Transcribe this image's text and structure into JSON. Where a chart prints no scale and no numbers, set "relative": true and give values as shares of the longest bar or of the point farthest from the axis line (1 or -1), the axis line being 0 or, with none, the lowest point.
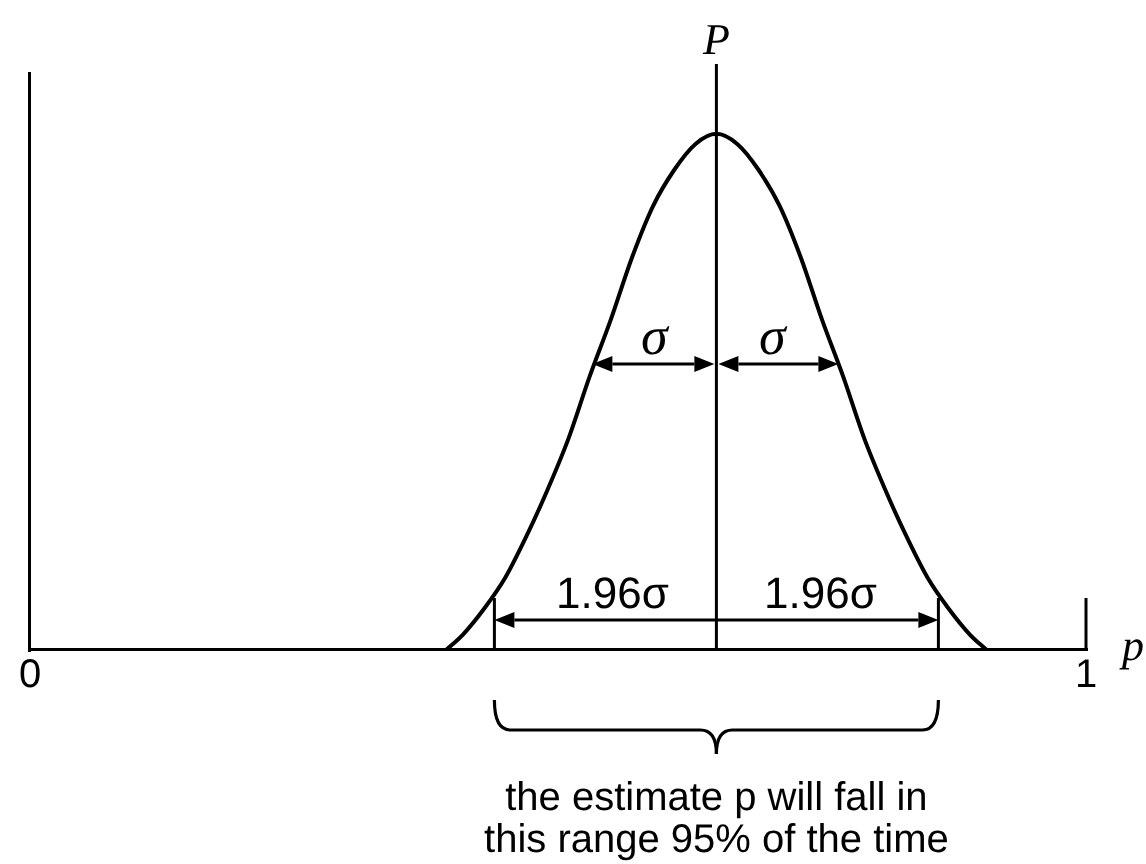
{
  "chart_data": {
    "type": "line",
    "xlabel": "p",
    "relative": true,
    "x": [
      0.394,
      0.41,
      0.43,
      0.45,
      0.47,
      0.49,
      0.51,
      0.53,
      0.55,
      0.57,
      0.59,
      0.61,
      0.63,
      0.65,
      0.67,
      0.69,
      0.71,
      0.73,
      0.75,
      0.77,
      0.79,
      0.81,
      0.83,
      0.85,
      0.87,
      0.89,
      0.906
    ],
    "values": [
      0,
      0.03,
      0.08,
      0.14,
      0.22,
      0.31,
      0.41,
      0.53,
      0.64,
      0.76,
      0.86,
      0.93,
      0.98,
      1,
      0.98,
      0.93,
      0.86,
      0.76,
      0.64,
      0.53,
      0.41,
      0.31,
      0.22,
      0.14,
      0.08,
      0.03,
      0
    ],
    "color": "#000000",
    "xlim": [
      0,
      1
    ],
    "xticks": [
      0,
      1
    ],
    "ref_lines": [
      {
        "axis": "x",
        "value": 0.65,
        "label": "P"
      }
    ],
    "annotations": [
      "σ",
      "σ",
      "1.96σ",
      "1.96σ",
      "the estimate p will fall in this range 95% of the time"
    ],
    "grid": false,
    "legend": false
  }
}
